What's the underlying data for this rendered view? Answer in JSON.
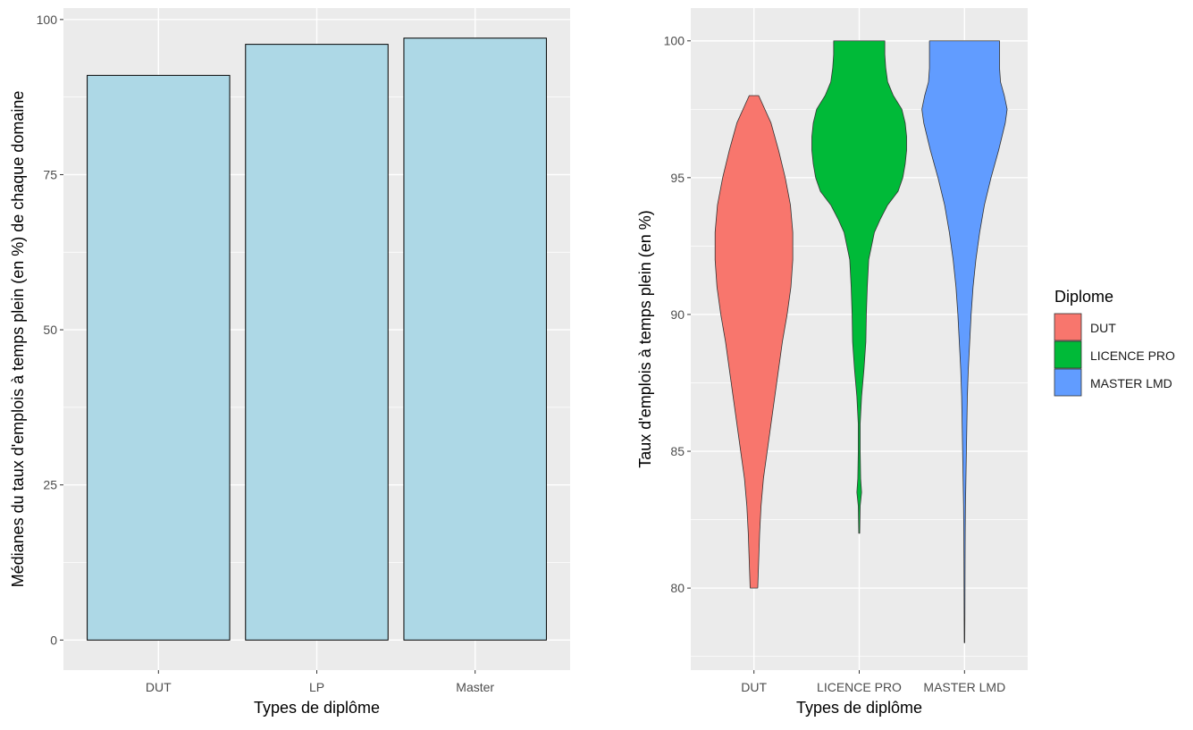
{
  "chart_data": [
    {
      "type": "bar",
      "categories": [
        "DUT",
        "LP",
        "Master"
      ],
      "values": [
        91,
        96,
        97
      ],
      "xlabel": "Types de diplôme",
      "ylabel": "Médianes du taux d'emplois à temps plein (en %) de chaque domaine",
      "ylim": [
        -4.85,
        101.85
      ],
      "yticks": [
        0,
        25,
        50,
        75,
        100
      ],
      "bar_fill": "#ADD8E6",
      "bar_outline": "#000000",
      "grid": true,
      "panel_background": "#EBEBEB"
    },
    {
      "type": "violin",
      "categories": [
        "DUT",
        "LICENCE PRO",
        "MASTER LMD"
      ],
      "xlabel": "Types de diplôme",
      "ylabel": "Taux d'emplois à temps plein (en %)",
      "ylim": [
        77.0,
        101.2
      ],
      "yticks": [
        80,
        85,
        90,
        95,
        100
      ],
      "grid": true,
      "panel_background": "#EBEBEB",
      "legend": {
        "title": "Diplome",
        "position": "right",
        "entries": [
          {
            "label": "DUT",
            "color": "#F8766D"
          },
          {
            "label": "LICENCE PRO",
            "color": "#00BA38"
          },
          {
            "label": "MASTER LMD",
            "color": "#619CFF"
          }
        ]
      },
      "series": [
        {
          "name": "DUT",
          "color": "#F8766D",
          "min": 80,
          "max": 98,
          "density": [
            [
              80,
              0.08
            ],
            [
              81,
              0.1
            ],
            [
              82,
              0.12
            ],
            [
              83,
              0.15
            ],
            [
              84,
              0.2
            ],
            [
              85,
              0.28
            ],
            [
              86,
              0.36
            ],
            [
              87,
              0.44
            ],
            [
              88,
              0.52
            ],
            [
              89,
              0.6
            ],
            [
              90,
              0.7
            ],
            [
              91,
              0.78
            ],
            [
              92,
              0.82
            ],
            [
              93,
              0.82
            ],
            [
              94,
              0.77
            ],
            [
              95,
              0.66
            ],
            [
              96,
              0.52
            ],
            [
              97,
              0.36
            ],
            [
              98,
              0.1
            ]
          ]
        },
        {
          "name": "LICENCE PRO",
          "color": "#00BA38",
          "min": 82,
          "max": 100,
          "density": [
            [
              82,
              0.01
            ],
            [
              83,
              0.02
            ],
            [
              83.5,
              0.05
            ],
            [
              84,
              0.03
            ],
            [
              85,
              0.02
            ],
            [
              86,
              0.02
            ],
            [
              87,
              0.05
            ],
            [
              88,
              0.1
            ],
            [
              89,
              0.14
            ],
            [
              90,
              0.15
            ],
            [
              91,
              0.17
            ],
            [
              92,
              0.2
            ],
            [
              93,
              0.32
            ],
            [
              93.5,
              0.45
            ],
            [
              94,
              0.6
            ],
            [
              94.5,
              0.82
            ],
            [
              95,
              0.92
            ],
            [
              95.5,
              0.97
            ],
            [
              96,
              1.0
            ],
            [
              96.5,
              1.0
            ],
            [
              97,
              0.97
            ],
            [
              97.5,
              0.9
            ],
            [
              98,
              0.72
            ],
            [
              98.5,
              0.6
            ],
            [
              99,
              0.56
            ],
            [
              99.5,
              0.54
            ],
            [
              100,
              0.54
            ]
          ]
        },
        {
          "name": "MASTER LMD",
          "color": "#619CFF",
          "min": 78,
          "max": 100,
          "density": [
            [
              78,
              0.005
            ],
            [
              79,
              0.008
            ],
            [
              80,
              0.01
            ],
            [
              81,
              0.012
            ],
            [
              82,
              0.015
            ],
            [
              83,
              0.02
            ],
            [
              84,
              0.03
            ],
            [
              85,
              0.04
            ],
            [
              86,
              0.05
            ],
            [
              87,
              0.06
            ],
            [
              88,
              0.08
            ],
            [
              89,
              0.11
            ],
            [
              90,
              0.14
            ],
            [
              91,
              0.18
            ],
            [
              92,
              0.24
            ],
            [
              93,
              0.32
            ],
            [
              94,
              0.42
            ],
            [
              95,
              0.56
            ],
            [
              96,
              0.72
            ],
            [
              97,
              0.86
            ],
            [
              97.5,
              0.9
            ],
            [
              98,
              0.84
            ],
            [
              98.5,
              0.76
            ],
            [
              99,
              0.74
            ],
            [
              99.5,
              0.74
            ],
            [
              100,
              0.74
            ]
          ]
        }
      ]
    }
  ]
}
